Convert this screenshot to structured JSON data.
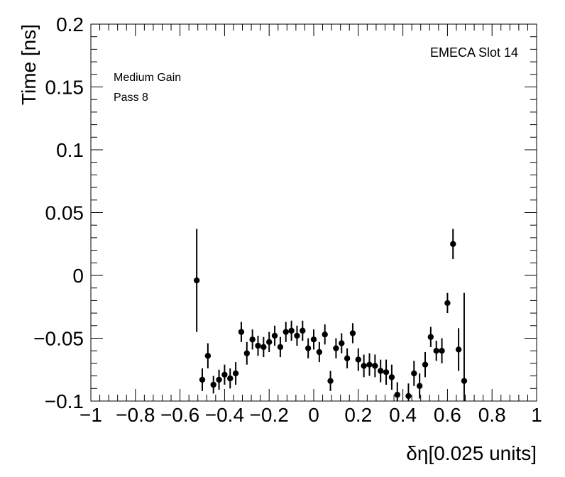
{
  "chart_data": {
    "type": "scatter",
    "title": "",
    "xlabel": "δη[0.025 units]",
    "ylabel": "Time [ns]",
    "xlim": [
      -1,
      1
    ],
    "ylim": [
      -0.1,
      0.2
    ],
    "x_ticks": [
      "−1",
      "−0.8",
      "−0.6",
      "−0.4",
      "−0.2",
      "0",
      "0.2",
      "0.4",
      "0.6",
      "0.8",
      "1"
    ],
    "x_tick_values": [
      -1,
      -0.8,
      -0.6,
      -0.4,
      -0.2,
      0,
      0.2,
      0.4,
      0.6,
      0.8,
      1
    ],
    "y_ticks": [
      "−0.1",
      "−0.05",
      "0",
      "0.05",
      "0.1",
      "0.15",
      "0.2"
    ],
    "y_tick_values": [
      -0.1,
      -0.05,
      0,
      0.05,
      0.1,
      0.15,
      0.2
    ],
    "annotations": {
      "top_right": "EMECA Slot 14",
      "left_line1": "Medium Gain",
      "left_line2": "Pass 8"
    },
    "grid": false,
    "marker_color": "#000000",
    "series": [
      {
        "points": [
          {
            "x": -0.525,
            "y": -0.004,
            "err": 0.041
          },
          {
            "x": -0.5,
            "y": -0.083,
            "err": 0.009
          },
          {
            "x": -0.475,
            "y": -0.064,
            "err": 0.01
          },
          {
            "x": -0.45,
            "y": -0.087,
            "err": 0.007
          },
          {
            "x": -0.425,
            "y": -0.083,
            "err": 0.008
          },
          {
            "x": -0.4,
            "y": -0.079,
            "err": 0.008
          },
          {
            "x": -0.375,
            "y": -0.082,
            "err": 0.008
          },
          {
            "x": -0.35,
            "y": -0.078,
            "err": 0.009
          },
          {
            "x": -0.325,
            "y": -0.045,
            "err": 0.008
          },
          {
            "x": -0.3,
            "y": -0.062,
            "err": 0.009
          },
          {
            "x": -0.275,
            "y": -0.051,
            "err": 0.008
          },
          {
            "x": -0.25,
            "y": -0.056,
            "err": 0.008
          },
          {
            "x": -0.225,
            "y": -0.057,
            "err": 0.008
          },
          {
            "x": -0.2,
            "y": -0.053,
            "err": 0.008
          },
          {
            "x": -0.175,
            "y": -0.048,
            "err": 0.008
          },
          {
            "x": -0.15,
            "y": -0.057,
            "err": 0.008
          },
          {
            "x": -0.125,
            "y": -0.045,
            "err": 0.008
          },
          {
            "x": -0.1,
            "y": -0.044,
            "err": 0.008
          },
          {
            "x": -0.075,
            "y": -0.048,
            "err": 0.008
          },
          {
            "x": -0.05,
            "y": -0.044,
            "err": 0.008
          },
          {
            "x": -0.025,
            "y": -0.058,
            "err": 0.008
          },
          {
            "x": 0.0,
            "y": -0.051,
            "err": 0.008
          },
          {
            "x": 0.025,
            "y": -0.061,
            "err": 0.008
          },
          {
            "x": 0.05,
            "y": -0.047,
            "err": 0.008
          },
          {
            "x": 0.075,
            "y": -0.084,
            "err": 0.008
          },
          {
            "x": 0.1,
            "y": -0.058,
            "err": 0.008
          },
          {
            "x": 0.125,
            "y": -0.054,
            "err": 0.008
          },
          {
            "x": 0.15,
            "y": -0.066,
            "err": 0.008
          },
          {
            "x": 0.175,
            "y": -0.046,
            "err": 0.008
          },
          {
            "x": 0.2,
            "y": -0.067,
            "err": 0.009
          },
          {
            "x": 0.225,
            "y": -0.072,
            "err": 0.009
          },
          {
            "x": 0.25,
            "y": -0.071,
            "err": 0.009
          },
          {
            "x": 0.275,
            "y": -0.072,
            "err": 0.009
          },
          {
            "x": 0.3,
            "y": -0.076,
            "err": 0.009
          },
          {
            "x": 0.325,
            "y": -0.077,
            "err": 0.01
          },
          {
            "x": 0.35,
            "y": -0.081,
            "err": 0.01
          },
          {
            "x": 0.375,
            "y": -0.095,
            "err": 0.01
          },
          {
            "x": 0.425,
            "y": -0.096,
            "err": 0.01
          },
          {
            "x": 0.45,
            "y": -0.078,
            "err": 0.01
          },
          {
            "x": 0.475,
            "y": -0.088,
            "err": 0.01
          },
          {
            "x": 0.5,
            "y": -0.071,
            "err": 0.01
          },
          {
            "x": 0.525,
            "y": -0.049,
            "err": 0.008
          },
          {
            "x": 0.55,
            "y": -0.06,
            "err": 0.008
          },
          {
            "x": 0.575,
            "y": -0.06,
            "err": 0.01
          },
          {
            "x": 0.6,
            "y": -0.022,
            "err": 0.008
          },
          {
            "x": 0.625,
            "y": 0.025,
            "err": 0.012
          },
          {
            "x": 0.65,
            "y": -0.059,
            "err": 0.017
          },
          {
            "x": 0.675,
            "y": -0.084,
            "err": 0.07
          }
        ]
      }
    ]
  }
}
